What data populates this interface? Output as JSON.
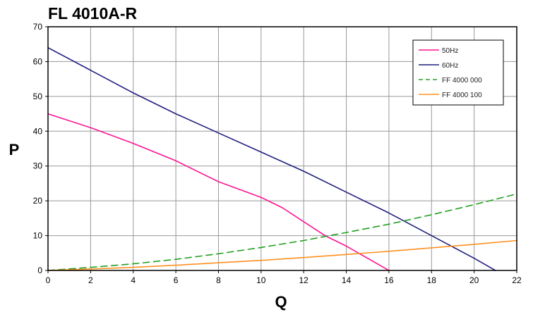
{
  "chart_data": {
    "type": "line",
    "title": "FL 4010A-R",
    "xlabel": "Q",
    "ylabel": "P",
    "xlim": [
      0,
      22
    ],
    "ylim": [
      0,
      70
    ],
    "x_ticks": [
      0,
      2,
      4,
      6,
      8,
      10,
      12,
      14,
      16,
      18,
      20,
      22
    ],
    "y_ticks": [
      0,
      10,
      20,
      30,
      40,
      50,
      60,
      70
    ],
    "grid": true,
    "legend_position": "top-right",
    "series": [
      {
        "name": "50Hz",
        "color": "#ff1493",
        "dash": "solid",
        "x": [
          0,
          2,
          4,
          6,
          8,
          10,
          11,
          12,
          13,
          14,
          15,
          16
        ],
        "y": [
          45,
          41,
          36.5,
          31.5,
          25.5,
          21,
          18,
          14,
          10,
          7,
          3.5,
          0
        ]
      },
      {
        "name": "60Hz",
        "color": "#1f1f80",
        "dash": "solid",
        "x": [
          0,
          2,
          4,
          6,
          8,
          10,
          12,
          14,
          16,
          18,
          20,
          21
        ],
        "y": [
          64,
          57.5,
          51,
          45,
          39.5,
          34,
          28.5,
          22.5,
          16.5,
          10,
          3.5,
          0
        ]
      },
      {
        "name": "FF 4000 000",
        "color": "#22a022",
        "dash": "dashed",
        "x": [
          0,
          2,
          4,
          6,
          8,
          10,
          12,
          14,
          16,
          18,
          20,
          22
        ],
        "y": [
          0,
          0.9,
          1.9,
          3.2,
          4.8,
          6.6,
          8.6,
          10.9,
          13.3,
          16.0,
          18.9,
          22.0
        ]
      },
      {
        "name": "FF 4000 100",
        "color": "#ff9020",
        "dash": "solid",
        "x": [
          0,
          2,
          4,
          6,
          8,
          10,
          12,
          14,
          16,
          18,
          20,
          22
        ],
        "y": [
          0,
          0.4,
          0.9,
          1.5,
          2.2,
          2.9,
          3.7,
          4.6,
          5.5,
          6.5,
          7.5,
          8.6
        ]
      }
    ]
  }
}
